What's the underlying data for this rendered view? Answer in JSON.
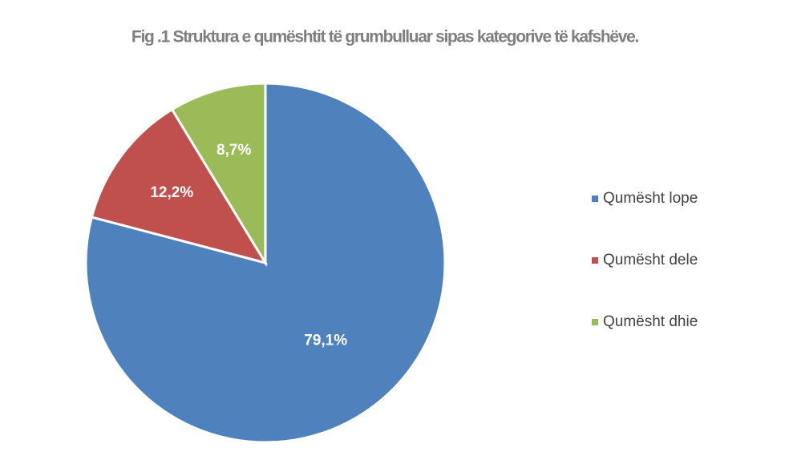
{
  "chart_data": {
    "type": "pie",
    "title": "Fig .1 Struktura e qumështit të grumbulluar sipas kategorive të kafshëve.",
    "categories": [
      "Qumësht lope",
      "Qumësht dele",
      "Qumësht dhie"
    ],
    "values": [
      79.1,
      12.2,
      8.7
    ],
    "value_labels": [
      "79,1%",
      "12,2%",
      "8,7%"
    ],
    "colors": [
      "#4f81bd",
      "#c0504d",
      "#9bbb59"
    ],
    "legend": "right"
  }
}
